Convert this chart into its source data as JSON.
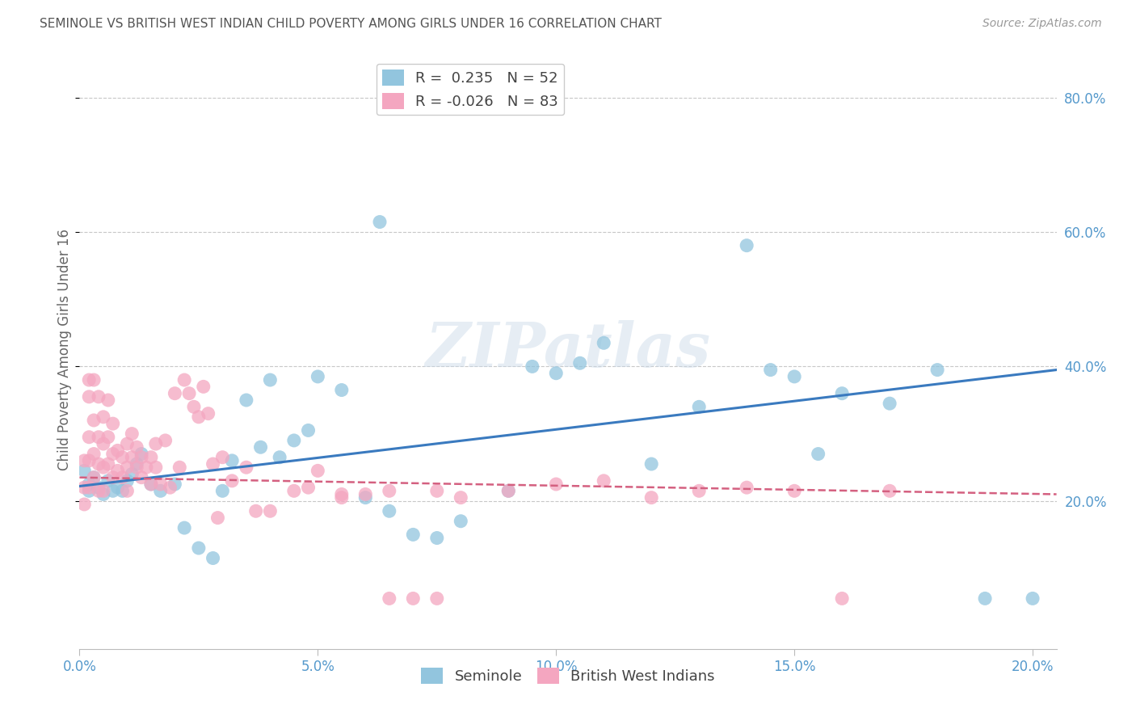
{
  "title": "SEMINOLE VS BRITISH WEST INDIAN CHILD POVERTY AMONG GIRLS UNDER 16 CORRELATION CHART",
  "source": "Source: ZipAtlas.com",
  "ylabel": "Child Poverty Among Girls Under 16",
  "seminole_R": 0.235,
  "seminole_N": 52,
  "bwi_R": -0.026,
  "bwi_N": 83,
  "seminole_color": "#92c5de",
  "bwi_color": "#f4a6c0",
  "trend_seminole_color": "#3a7abf",
  "trend_bwi_color": "#d46080",
  "background_color": "#ffffff",
  "grid_color": "#c8c8c8",
  "title_color": "#555555",
  "axis_tick_color": "#5599cc",
  "watermark": "ZIPatlas",
  "xlim": [
    0.0,
    0.205
  ],
  "ylim": [
    -0.02,
    0.87
  ],
  "yticks": [
    0.2,
    0.4,
    0.6,
    0.8
  ],
  "xticks": [
    0.0,
    0.05,
    0.1,
    0.15,
    0.2
  ],
  "seminole_x": [
    0.001,
    0.002,
    0.002,
    0.003,
    0.004,
    0.005,
    0.006,
    0.007,
    0.008,
    0.009,
    0.01,
    0.011,
    0.012,
    0.013,
    0.015,
    0.017,
    0.02,
    0.022,
    0.025,
    0.028,
    0.03,
    0.032,
    0.035,
    0.038,
    0.04,
    0.042,
    0.045,
    0.048,
    0.05,
    0.055,
    0.06,
    0.063,
    0.065,
    0.07,
    0.075,
    0.08,
    0.09,
    0.095,
    0.1,
    0.105,
    0.11,
    0.12,
    0.13,
    0.14,
    0.145,
    0.15,
    0.155,
    0.16,
    0.17,
    0.18,
    0.19,
    0.2
  ],
  "seminole_y": [
    0.245,
    0.225,
    0.215,
    0.235,
    0.22,
    0.21,
    0.23,
    0.215,
    0.22,
    0.215,
    0.23,
    0.24,
    0.255,
    0.27,
    0.225,
    0.215,
    0.225,
    0.16,
    0.13,
    0.115,
    0.215,
    0.26,
    0.35,
    0.28,
    0.38,
    0.265,
    0.29,
    0.305,
    0.385,
    0.365,
    0.205,
    0.615,
    0.185,
    0.15,
    0.145,
    0.17,
    0.215,
    0.4,
    0.39,
    0.405,
    0.435,
    0.255,
    0.34,
    0.58,
    0.395,
    0.385,
    0.27,
    0.36,
    0.345,
    0.395,
    0.055,
    0.055
  ],
  "bwi_x": [
    0.001,
    0.001,
    0.001,
    0.002,
    0.002,
    0.002,
    0.002,
    0.002,
    0.003,
    0.003,
    0.003,
    0.003,
    0.004,
    0.004,
    0.004,
    0.004,
    0.005,
    0.005,
    0.005,
    0.005,
    0.006,
    0.006,
    0.006,
    0.007,
    0.007,
    0.007,
    0.008,
    0.008,
    0.009,
    0.009,
    0.01,
    0.01,
    0.01,
    0.011,
    0.011,
    0.012,
    0.012,
    0.013,
    0.013,
    0.014,
    0.015,
    0.015,
    0.016,
    0.016,
    0.017,
    0.018,
    0.019,
    0.02,
    0.021,
    0.022,
    0.023,
    0.024,
    0.025,
    0.026,
    0.027,
    0.028,
    0.029,
    0.03,
    0.032,
    0.035,
    0.037,
    0.04,
    0.045,
    0.048,
    0.05,
    0.055,
    0.06,
    0.065,
    0.07,
    0.075,
    0.08,
    0.09,
    0.1,
    0.11,
    0.12,
    0.13,
    0.14,
    0.15,
    0.16,
    0.17,
    0.055,
    0.065,
    0.075
  ],
  "bwi_y": [
    0.22,
    0.26,
    0.195,
    0.38,
    0.355,
    0.295,
    0.26,
    0.22,
    0.38,
    0.32,
    0.27,
    0.235,
    0.355,
    0.295,
    0.255,
    0.215,
    0.325,
    0.285,
    0.25,
    0.215,
    0.35,
    0.295,
    0.255,
    0.315,
    0.27,
    0.235,
    0.275,
    0.245,
    0.265,
    0.235,
    0.285,
    0.25,
    0.215,
    0.3,
    0.265,
    0.28,
    0.25,
    0.265,
    0.235,
    0.25,
    0.265,
    0.225,
    0.285,
    0.25,
    0.225,
    0.29,
    0.22,
    0.36,
    0.25,
    0.38,
    0.36,
    0.34,
    0.325,
    0.37,
    0.33,
    0.255,
    0.175,
    0.265,
    0.23,
    0.25,
    0.185,
    0.185,
    0.215,
    0.22,
    0.245,
    0.205,
    0.21,
    0.055,
    0.055,
    0.055,
    0.205,
    0.215,
    0.225,
    0.23,
    0.205,
    0.215,
    0.22,
    0.215,
    0.055,
    0.215,
    0.21,
    0.215,
    0.215
  ],
  "trend_seminole_x0": 0.0,
  "trend_seminole_y0": 0.222,
  "trend_seminole_x1": 0.205,
  "trend_seminole_y1": 0.395,
  "trend_bwi_x0": 0.0,
  "trend_bwi_y0": 0.235,
  "trend_bwi_x1": 0.205,
  "trend_bwi_y1": 0.21
}
